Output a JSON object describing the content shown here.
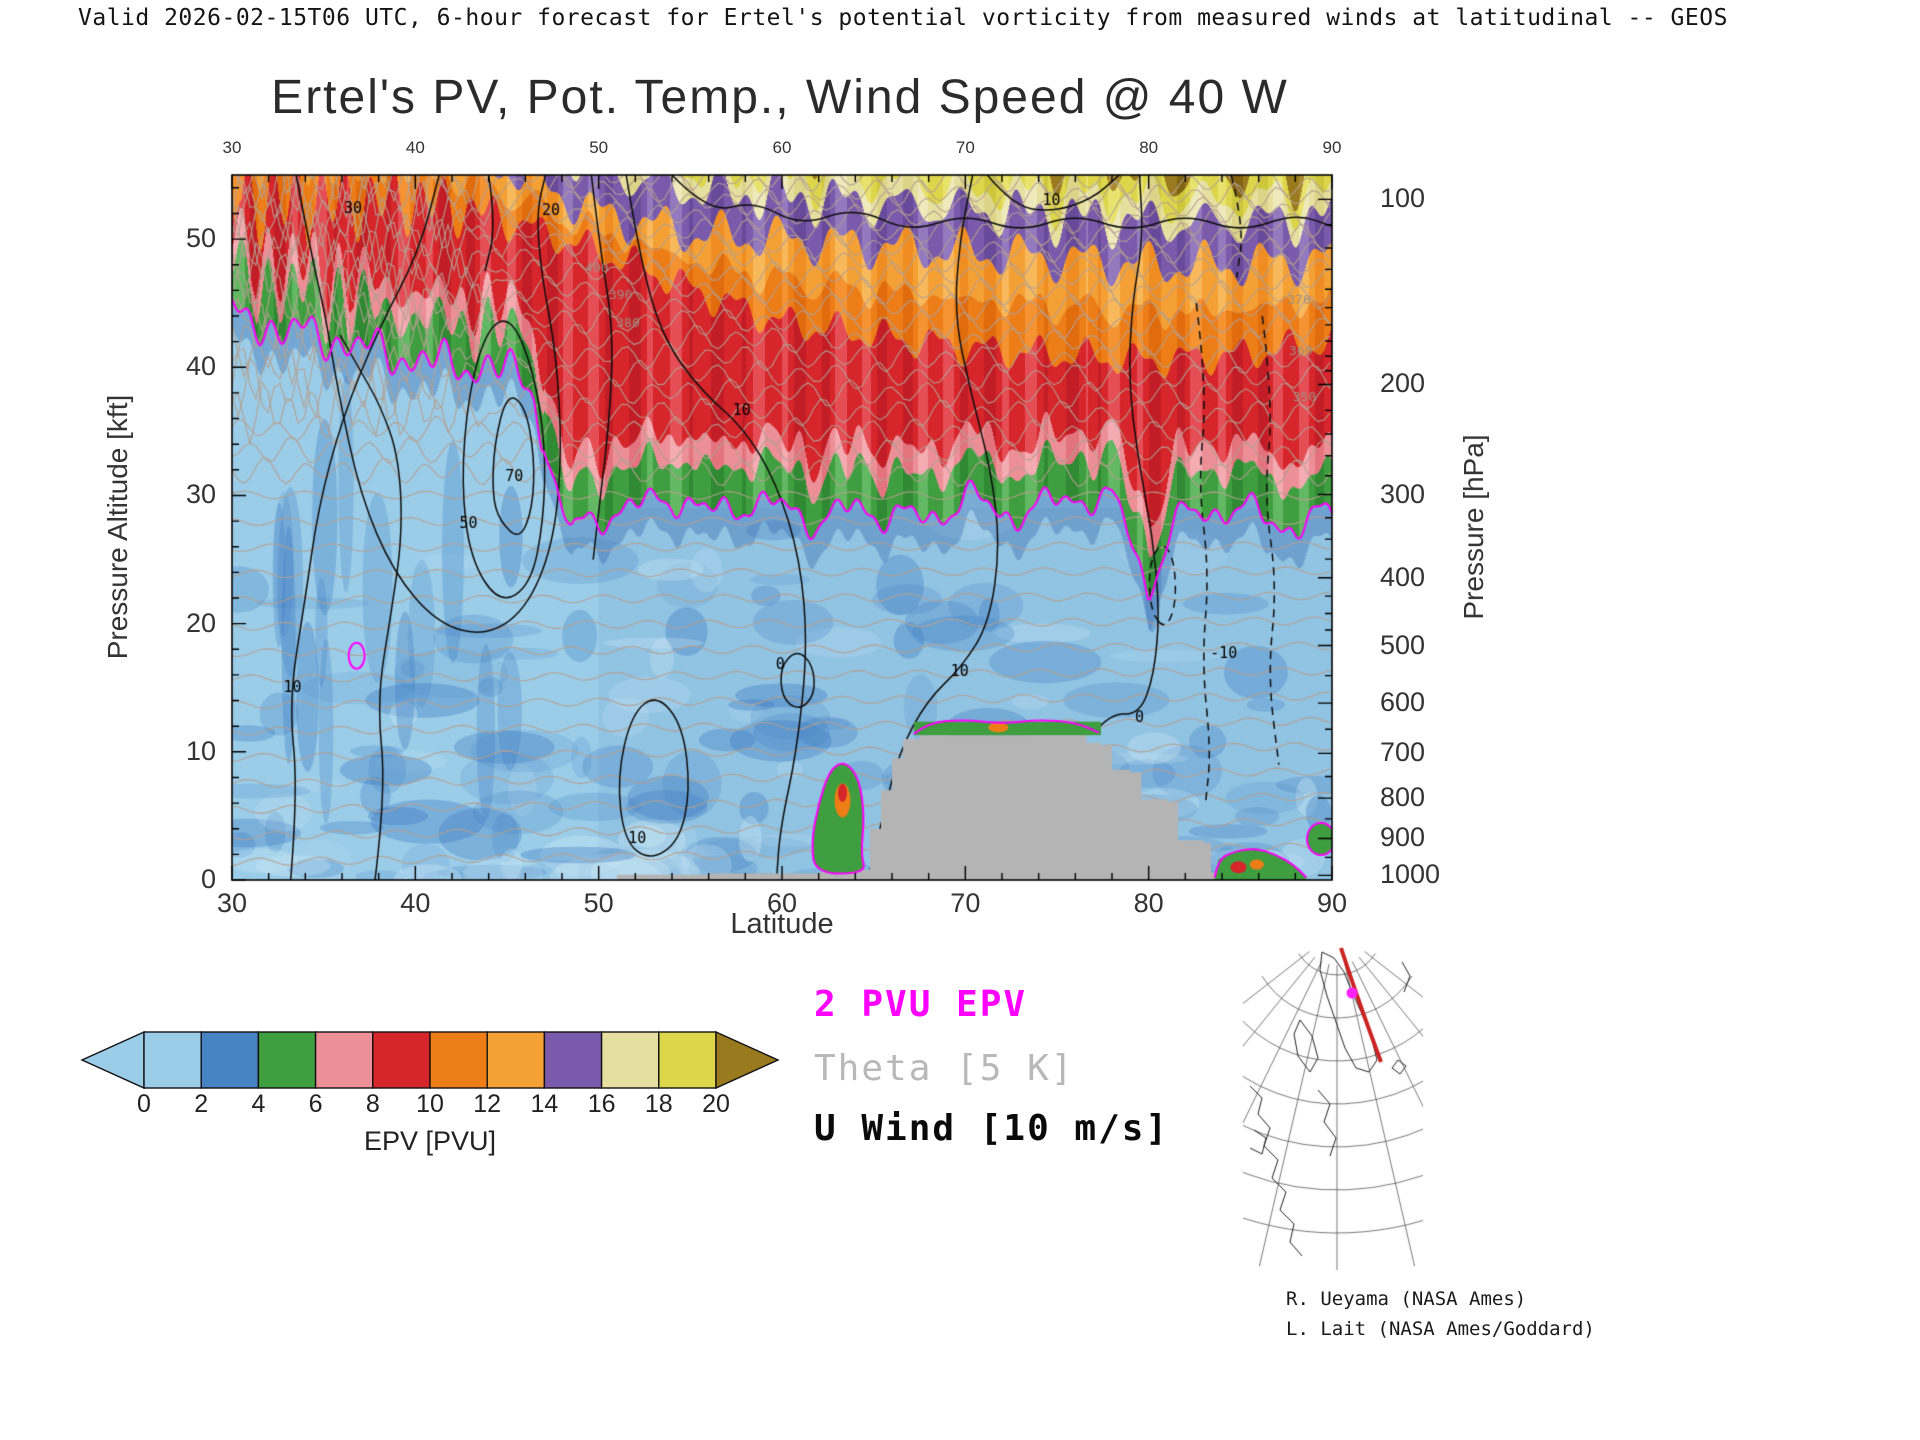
{
  "header": {
    "validity_line": "Valid 2026-02-15T06 UTC, 6-hour forecast for Ertel's potential vorticity from measured winds at latitudinal -- GEOS"
  },
  "title": "Ertel's PV, Pot. Temp., Wind Speed @ 40 W",
  "axes": {
    "x_label": "Latitude",
    "x_ticks": [
      "30",
      "40",
      "50",
      "60",
      "70",
      "80",
      "90"
    ],
    "y_left_label": "Pressure Altitude [kft]",
    "y_left_ticks": [
      "0",
      "10",
      "20",
      "30",
      "40",
      "50"
    ],
    "y_right_label": "Pressure [hPa]",
    "y_right_ticks": [
      "100",
      "200",
      "300",
      "400",
      "500",
      "600",
      "700",
      "800",
      "900",
      "1000"
    ]
  },
  "colorbar": {
    "label": "EPV [PVU]",
    "ticks": [
      "0",
      "2",
      "4",
      "6",
      "8",
      "10",
      "12",
      "14",
      "16",
      "18",
      "20"
    ],
    "segment_colors": [
      "#9bcde9",
      "#4583c2",
      "#3f9e3f",
      "#ec8f96",
      "#d6252b",
      "#ed7d17",
      "#f5a034",
      "#7a5aab",
      "#e6e0a0",
      "#ddd64b"
    ],
    "under_color": "#9bcde9",
    "over_color": "#9a7a1e"
  },
  "legend": [
    {
      "label": "2 PVU EPV",
      "color": "#ff00ff"
    },
    {
      "label": "Theta [5 K]",
      "color": "#b8b8b8"
    },
    {
      "label": "U Wind [10 m/s]",
      "color": "#0a0a0a"
    }
  ],
  "credits": [
    "R. Ueyama (NASA Ames)",
    "L. Lait (NASA Ames/Goddard)"
  ],
  "chart_data": {
    "type": "heatmap",
    "title": "Ertel's PV, Pot. Temp., Wind Speed @ 40 W",
    "xlabel": "Latitude",
    "x_range": [
      30,
      90
    ],
    "ylabel_left": "Pressure Altitude [kft]",
    "y_range_kft": [
      0,
      55
    ],
    "ylabel_right": "Pressure [hPa]",
    "pressure_ticks_hpa": [
      100,
      200,
      300,
      400,
      500,
      600,
      700,
      800,
      900,
      1000
    ],
    "fill_variable": "EPV [PVU]",
    "fill_levels_pvu": [
      0,
      2,
      4,
      6,
      8,
      10,
      12,
      14,
      16,
      18,
      20
    ],
    "overlays": [
      {
        "name": "2 PVU EPV contour",
        "color": "#ff00ff"
      },
      {
        "name": "Potential temperature, 5 K interval",
        "color": "#b8b8b8"
      },
      {
        "name": "Zonal wind U, 10 m/s interval",
        "color": "#0a0a0a"
      }
    ],
    "tropopause_2pvu": {
      "lat": [
        30,
        32,
        34,
        36,
        38,
        40,
        42,
        44,
        45.5,
        46.5,
        47.5,
        48.5,
        50,
        52,
        54,
        56,
        58,
        60,
        62,
        64,
        66,
        68,
        70,
        72,
        74,
        76,
        78,
        79,
        80,
        81,
        82,
        84,
        86,
        88,
        90
      ],
      "alt_kft": [
        44,
        43.2,
        42.6,
        42,
        41.2,
        40.6,
        40.2,
        40,
        39.5,
        38,
        31,
        27,
        28.5,
        29,
        30,
        28.5,
        29.5,
        29,
        28,
        29,
        28.5,
        28,
        30,
        28.5,
        29,
        30,
        29.5,
        27,
        22.5,
        26.5,
        28.5,
        29,
        28.5,
        27.5,
        28.5
      ]
    },
    "epv_10pvu_surface": {
      "lat": [
        30,
        36,
        40,
        44,
        48,
        52,
        56,
        60,
        65,
        70,
        75,
        80,
        85,
        90
      ],
      "alt_kft": [
        53,
        53,
        53,
        52,
        50,
        48,
        45.5,
        43.5,
        42.5,
        41.5,
        41,
        40.5,
        41,
        42
      ]
    },
    "epv_14pvu_surface": {
      "lat": [
        30,
        40,
        45,
        50,
        55,
        60,
        65,
        70,
        75,
        80,
        85,
        90
      ],
      "alt_kft": [
        60,
        58,
        55.5,
        52,
        50.5,
        50,
        49.5,
        49,
        48.5,
        48,
        48,
        48.5
      ]
    },
    "terrain_profile": {
      "lat": [
        51,
        56,
        62,
        64,
        64.8,
        65.4,
        66,
        66.6,
        67.5,
        76,
        76.6,
        77.4,
        78,
        79,
        79.6,
        81,
        81.6,
        83,
        83.4,
        88,
        88.3
      ],
      "top_kft": [
        0.4,
        0.5,
        0.6,
        0.8,
        4,
        7,
        9.5,
        11,
        11.3,
        11.3,
        10.7,
        10.5,
        8.6,
        8.4,
        6.3,
        6.1,
        3.1,
        2.9,
        0.6,
        0.4,
        0
      ]
    },
    "contour_labels": [
      {
        "text": "30",
        "lat": 36.6,
        "kft": 52.3,
        "set": "wind"
      },
      {
        "text": "20",
        "lat": 47.4,
        "kft": 52.2,
        "set": "wind"
      },
      {
        "text": "10",
        "lat": 74.7,
        "kft": 53.0,
        "set": "wind"
      },
      {
        "text": "10",
        "lat": 57.8,
        "kft": 36.6,
        "set": "wind"
      },
      {
        "text": "70",
        "lat": 45.4,
        "kft": 31.4,
        "set": "wind"
      },
      {
        "text": "50",
        "lat": 42.9,
        "kft": 27.8,
        "set": "wind"
      },
      {
        "text": "10",
        "lat": 33.3,
        "kft": 15.0,
        "set": "wind"
      },
      {
        "text": "0",
        "lat": 59.9,
        "kft": 16.8,
        "set": "wind"
      },
      {
        "text": "10",
        "lat": 69.7,
        "kft": 16.2,
        "set": "wind"
      },
      {
        "text": "0",
        "lat": 79.5,
        "kft": 12.6,
        "set": "wind"
      },
      {
        "text": "-10",
        "lat": 84.1,
        "kft": 17.6,
        "set": "wind"
      },
      {
        "text": "10",
        "lat": 52.1,
        "kft": 3.2,
        "set": "wind"
      },
      {
        "text": "400",
        "lat": 49.9,
        "kft": 47.7,
        "set": "theta"
      },
      {
        "text": "390",
        "lat": 51.2,
        "kft": 45.6,
        "set": "theta"
      },
      {
        "text": "380",
        "lat": 51.6,
        "kft": 43.4,
        "set": "theta"
      },
      {
        "text": "370",
        "lat": 88.2,
        "kft": 45.2,
        "set": "theta"
      },
      {
        "text": "360",
        "lat": 88.3,
        "kft": 41.2,
        "set": "theta"
      },
      {
        "text": "350",
        "lat": 88.5,
        "kft": 37.6,
        "set": "theta"
      }
    ]
  }
}
